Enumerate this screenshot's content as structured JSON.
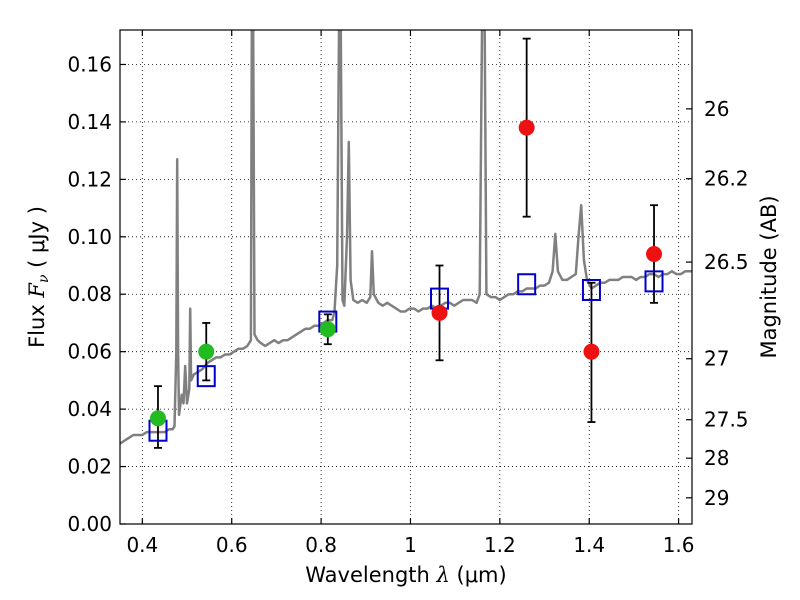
{
  "chart_data": {
    "type": "scatter",
    "title": "",
    "xlabel_prefix": "Wavelength  ",
    "xlabel_symbol": "λ",
    "xlabel_unit": " (μm)",
    "ylabel_prefix": "Flux  ",
    "ylabel_symbol": "F",
    "ylabel_sub": "ν",
    "ylabel_unit": "  ( μJy )",
    "y2label": "Magnitude (AB)",
    "xlim": [
      0.35,
      1.63
    ],
    "ylim": [
      0.0,
      0.172
    ],
    "grid": true,
    "x_ticks": [
      {
        "value": 0.4,
        "label": "0.4"
      },
      {
        "value": 0.6,
        "label": "0.6"
      },
      {
        "value": 0.8,
        "label": "0.8"
      },
      {
        "value": 1.0,
        "label": "1"
      },
      {
        "value": 1.2,
        "label": "1.2"
      },
      {
        "value": 1.4,
        "label": "1.4"
      },
      {
        "value": 1.6,
        "label": "1.6"
      }
    ],
    "y_ticks": [
      {
        "value": 0.0,
        "label": "0.00"
      },
      {
        "value": 0.02,
        "label": "0.02"
      },
      {
        "value": 0.04,
        "label": "0.04"
      },
      {
        "value": 0.06,
        "label": "0.06"
      },
      {
        "value": 0.08,
        "label": "0.08"
      },
      {
        "value": 0.1,
        "label": "0.10"
      },
      {
        "value": 0.12,
        "label": "0.12"
      },
      {
        "value": 0.14,
        "label": "0.14"
      },
      {
        "value": 0.16,
        "label": "0.16"
      }
    ],
    "y2_ticks": [
      {
        "value": 26,
        "label": "26"
      },
      {
        "value": 26.2,
        "label": "26.2"
      },
      {
        "value": 26.5,
        "label": "26.5"
      },
      {
        "value": 27,
        "label": "27"
      },
      {
        "value": 27.5,
        "label": "27.5"
      },
      {
        "value": 28,
        "label": "28"
      },
      {
        "value": 29,
        "label": "29"
      }
    ],
    "series": [
      {
        "kind": "line",
        "color": "#808080",
        "points": [
          [
            0.35,
            0.028
          ],
          [
            0.36,
            0.029
          ],
          [
            0.37,
            0.03
          ],
          [
            0.38,
            0.031
          ],
          [
            0.39,
            0.031
          ],
          [
            0.4,
            0.031
          ],
          [
            0.41,
            0.032
          ],
          [
            0.42,
            0.032
          ],
          [
            0.43,
            0.032
          ],
          [
            0.44,
            0.032
          ],
          [
            0.45,
            0.032
          ],
          [
            0.46,
            0.033
          ],
          [
            0.468,
            0.033
          ],
          [
            0.472,
            0.034
          ],
          [
            0.476,
            0.06
          ],
          [
            0.478,
            0.127
          ],
          [
            0.48,
            0.06
          ],
          [
            0.482,
            0.038
          ],
          [
            0.488,
            0.045
          ],
          [
            0.492,
            0.042
          ],
          [
            0.496,
            0.055
          ],
          [
            0.5,
            0.042
          ],
          [
            0.505,
            0.047
          ],
          [
            0.507,
            0.075
          ],
          [
            0.509,
            0.05
          ],
          [
            0.515,
            0.052
          ],
          [
            0.525,
            0.053
          ],
          [
            0.535,
            0.054
          ],
          [
            0.545,
            0.056
          ],
          [
            0.555,
            0.057
          ],
          [
            0.565,
            0.058
          ],
          [
            0.575,
            0.058
          ],
          [
            0.585,
            0.059
          ],
          [
            0.595,
            0.059
          ],
          [
            0.605,
            0.06
          ],
          [
            0.615,
            0.061
          ],
          [
            0.625,
            0.061
          ],
          [
            0.635,
            0.062
          ],
          [
            0.643,
            0.064
          ],
          [
            0.645,
            0.172
          ],
          [
            0.648,
            0.172
          ],
          [
            0.651,
            0.066
          ],
          [
            0.658,
            0.064
          ],
          [
            0.665,
            0.063
          ],
          [
            0.675,
            0.062
          ],
          [
            0.685,
            0.063
          ],
          [
            0.695,
            0.064
          ],
          [
            0.705,
            0.063
          ],
          [
            0.715,
            0.064
          ],
          [
            0.725,
            0.064
          ],
          [
            0.735,
            0.065
          ],
          [
            0.745,
            0.066
          ],
          [
            0.755,
            0.067
          ],
          [
            0.765,
            0.068
          ],
          [
            0.775,
            0.068
          ],
          [
            0.785,
            0.069
          ],
          [
            0.795,
            0.069
          ],
          [
            0.805,
            0.07
          ],
          [
            0.815,
            0.071
          ],
          [
            0.825,
            0.071
          ],
          [
            0.83,
            0.074
          ],
          [
            0.836,
            0.09
          ],
          [
            0.84,
            0.172
          ],
          [
            0.844,
            0.172
          ],
          [
            0.848,
            0.078
          ],
          [
            0.852,
            0.076
          ],
          [
            0.858,
            0.1
          ],
          [
            0.862,
            0.133
          ],
          [
            0.866,
            0.085
          ],
          [
            0.872,
            0.078
          ],
          [
            0.882,
            0.077
          ],
          [
            0.892,
            0.078
          ],
          [
            0.902,
            0.077
          ],
          [
            0.91,
            0.079
          ],
          [
            0.914,
            0.095
          ],
          [
            0.918,
            0.08
          ],
          [
            0.928,
            0.077
          ],
          [
            0.938,
            0.076
          ],
          [
            0.948,
            0.077
          ],
          [
            0.958,
            0.076
          ],
          [
            0.968,
            0.075
          ],
          [
            0.978,
            0.074
          ],
          [
            0.988,
            0.074
          ],
          [
            0.998,
            0.075
          ],
          [
            1.008,
            0.075
          ],
          [
            1.018,
            0.074
          ],
          [
            1.028,
            0.075
          ],
          [
            1.038,
            0.075
          ],
          [
            1.048,
            0.076
          ],
          [
            1.058,
            0.075
          ],
          [
            1.068,
            0.076
          ],
          [
            1.078,
            0.077
          ],
          [
            1.088,
            0.077
          ],
          [
            1.098,
            0.076
          ],
          [
            1.108,
            0.077
          ],
          [
            1.118,
            0.078
          ],
          [
            1.128,
            0.078
          ],
          [
            1.138,
            0.078
          ],
          [
            1.148,
            0.077
          ],
          [
            1.155,
            0.08
          ],
          [
            1.16,
            0.172
          ],
          [
            1.166,
            0.172
          ],
          [
            1.17,
            0.08
          ],
          [
            1.18,
            0.079
          ],
          [
            1.19,
            0.079
          ],
          [
            1.2,
            0.078
          ],
          [
            1.21,
            0.079
          ],
          [
            1.22,
            0.08
          ],
          [
            1.23,
            0.08
          ],
          [
            1.24,
            0.081
          ],
          [
            1.25,
            0.081
          ],
          [
            1.26,
            0.082
          ],
          [
            1.27,
            0.082
          ],
          [
            1.28,
            0.082
          ],
          [
            1.29,
            0.083
          ],
          [
            1.3,
            0.083
          ],
          [
            1.31,
            0.084
          ],
          [
            1.318,
            0.088
          ],
          [
            1.324,
            0.101
          ],
          [
            1.33,
            0.088
          ],
          [
            1.34,
            0.085
          ],
          [
            1.35,
            0.085
          ],
          [
            1.36,
            0.086
          ],
          [
            1.37,
            0.087
          ],
          [
            1.376,
            0.1
          ],
          [
            1.382,
            0.111
          ],
          [
            1.388,
            0.092
          ],
          [
            1.395,
            0.085
          ],
          [
            1.405,
            0.082
          ],
          [
            1.415,
            0.083
          ],
          [
            1.425,
            0.084
          ],
          [
            1.435,
            0.084
          ],
          [
            1.445,
            0.085
          ],
          [
            1.455,
            0.085
          ],
          [
            1.465,
            0.085
          ],
          [
            1.475,
            0.086
          ],
          [
            1.485,
            0.086
          ],
          [
            1.495,
            0.086
          ],
          [
            1.505,
            0.085
          ],
          [
            1.515,
            0.086
          ],
          [
            1.525,
            0.086
          ],
          [
            1.535,
            0.087
          ],
          [
            1.545,
            0.087
          ],
          [
            1.555,
            0.086
          ],
          [
            1.565,
            0.087
          ],
          [
            1.575,
            0.087
          ],
          [
            1.585,
            0.088
          ],
          [
            1.595,
            0.087
          ],
          [
            1.605,
            0.087
          ],
          [
            1.615,
            0.088
          ],
          [
            1.625,
            0.088
          ],
          [
            1.63,
            0.088
          ]
        ]
      },
      {
        "kind": "scatter",
        "marker": "square",
        "color": "#0000cc",
        "points": [
          [
            0.435,
            0.033
          ],
          [
            0.543,
            0.052
          ],
          [
            0.815,
            0.071
          ],
          [
            1.065,
            0.079
          ],
          [
            1.26,
            0.084
          ],
          [
            1.405,
            0.082
          ],
          [
            1.545,
            0.085
          ]
        ]
      },
      {
        "kind": "scatter",
        "marker": "circle",
        "color": "#22bb22",
        "points": [
          {
            "x": 0.435,
            "y": 0.0368,
            "err_low": 0.0103,
            "err_high": 0.0112
          },
          {
            "x": 0.543,
            "y": 0.06,
            "err_low": 0.01,
            "err_high": 0.01
          },
          {
            "x": 0.815,
            "y": 0.0678,
            "err_low": 0.0052,
            "err_high": 0.0052
          }
        ]
      },
      {
        "kind": "scatter",
        "marker": "circle",
        "color": "#ee1111",
        "points": [
          {
            "x": 1.065,
            "y": 0.0735,
            "err_low": 0.0165,
            "err_high": 0.0165
          },
          {
            "x": 1.26,
            "y": 0.138,
            "err_low": 0.031,
            "err_high": 0.031
          },
          {
            "x": 1.405,
            "y": 0.06,
            "err_low": 0.0245,
            "err_high": 0.024
          },
          {
            "x": 1.545,
            "y": 0.094,
            "err_low": 0.017,
            "err_high": 0.017
          }
        ]
      }
    ]
  }
}
